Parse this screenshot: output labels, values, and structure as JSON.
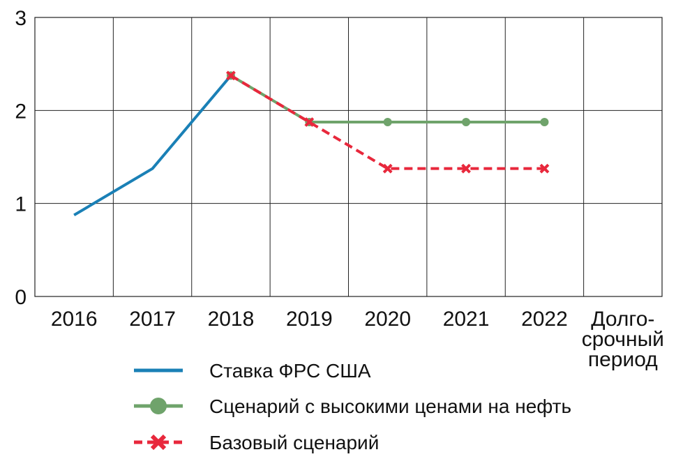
{
  "chart_data": {
    "type": "line",
    "categories": [
      "2016",
      "2017",
      "2018",
      "2019",
      "2020",
      "2021",
      "2022",
      "Долго-\nсрочный\nпериод"
    ],
    "ylim": [
      0,
      3
    ],
    "yticks": [
      0,
      1,
      2,
      3
    ],
    "grid": true,
    "legend_placement": "bottom",
    "series": [
      {
        "name": "Ставка ФРС США",
        "color": "#1a80b6",
        "style": "solid",
        "marker": "none",
        "values": [
          0.875,
          1.375,
          2.375,
          null,
          null,
          null,
          null,
          null
        ]
      },
      {
        "name": "Сценарий с высокими ценами на нефть",
        "color": "#6fa36b",
        "style": "solid",
        "marker": "circle",
        "values": [
          null,
          null,
          2.375,
          1.875,
          1.875,
          1.875,
          1.875,
          null
        ]
      },
      {
        "name": "Базовый сценарий",
        "color": "#e8283c",
        "style": "dashed",
        "marker": "x",
        "values": [
          null,
          null,
          2.375,
          1.875,
          1.375,
          1.375,
          1.375,
          null
        ]
      }
    ]
  }
}
